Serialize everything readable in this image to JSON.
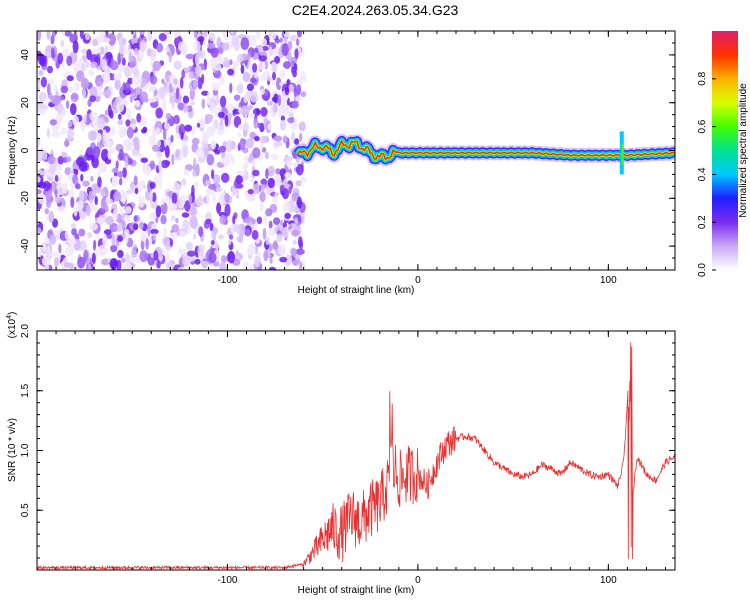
{
  "title": "C2E4.2024.263.05.34.G23",
  "chart_data": [
    {
      "type": "heatmap",
      "xlabel": "Height of straight line (km)",
      "ylabel": "Frequency (Hz)",
      "xlim": [
        -200,
        135
      ],
      "ylim": [
        -50,
        50
      ],
      "xticks": [
        -100,
        0,
        100
      ],
      "xtick_labels": [
        "-100",
        "0",
        "100"
      ],
      "yticks": [
        -40,
        -20,
        0,
        20,
        40
      ],
      "ytick_labels": [
        "-40",
        "-20",
        "0",
        "20",
        "40"
      ],
      "grid": false,
      "noise_region_x": [
        -200,
        -60
      ],
      "signal_ridge": [
        {
          "x": -62,
          "y": -2
        },
        {
          "x": -55,
          "y": 1
        },
        {
          "x": -50,
          "y": 2
        },
        {
          "x": -45,
          "y": -1
        },
        {
          "x": -40,
          "y": 2
        },
        {
          "x": -35,
          "y": 3
        },
        {
          "x": -30,
          "y": 2
        },
        {
          "x": -25,
          "y": -1
        },
        {
          "x": -20,
          "y": -3
        },
        {
          "x": -15,
          "y": -2
        },
        {
          "x": -10,
          "y": -1
        },
        {
          "x": 0,
          "y": -1
        },
        {
          "x": 20,
          "y": -1
        },
        {
          "x": 40,
          "y": -1
        },
        {
          "x": 60,
          "y": -1
        },
        {
          "x": 80,
          "y": -2
        },
        {
          "x": 100,
          "y": -2
        },
        {
          "x": 110,
          "y": -2
        },
        {
          "x": 135,
          "y": -1
        }
      ],
      "colorbar": {
        "label": "Normalized spectral amplitude",
        "ticks": [
          0.0,
          0.2,
          0.4,
          0.6,
          0.8
        ],
        "tick_labels": [
          "0.0",
          "0.2",
          "0.4",
          "0.6",
          "0.8"
        ],
        "range": [
          0,
          1
        ],
        "colors": [
          "#ffffff",
          "#c9a8f5",
          "#7b2cf0",
          "#1f1fff",
          "#00c8ff",
          "#00e090",
          "#40ff00",
          "#d8ff00",
          "#ffb000",
          "#ff3000",
          "#e0206a"
        ]
      }
    },
    {
      "type": "line",
      "xlabel": "Height of straight line (km)",
      "ylabel": "SNR (10 * v/v)",
      "y_multiplier_label": "(x10",
      "y_multiplier_exp": "4",
      "xlim": [
        -200,
        135
      ],
      "ylim": [
        0,
        2.0
      ],
      "xticks": [
        -100,
        0,
        100
      ],
      "xtick_labels": [
        "-100",
        "0",
        "100"
      ],
      "yticks": [
        0.5,
        1.0,
        1.5,
        2.0
      ],
      "ytick_labels": [
        "0.5",
        "1.0",
        "1.5",
        "2.0"
      ],
      "grid": false,
      "color": "#e83030",
      "series": [
        {
          "x": [
            -200,
            -150,
            -100,
            -70,
            -60,
            -55,
            -50,
            -45,
            -40,
            -35,
            -30,
            -25,
            -20,
            -15,
            -12,
            -10,
            -5,
            0,
            5,
            10,
            15,
            20,
            25,
            30,
            35,
            40,
            50,
            55,
            60,
            65,
            70,
            75,
            80,
            85,
            90,
            95,
            100,
            105,
            108,
            110,
            112,
            115,
            120,
            125,
            130,
            135
          ],
          "y": [
            0.02,
            0.02,
            0.02,
            0.02,
            0.05,
            0.15,
            0.25,
            0.35,
            0.3,
            0.45,
            0.4,
            0.5,
            0.55,
            0.75,
            0.85,
            0.75,
            0.8,
            0.8,
            0.7,
            0.9,
            1.05,
            1.1,
            1.12,
            1.1,
            1.0,
            0.9,
            0.8,
            0.78,
            0.8,
            0.88,
            0.85,
            0.8,
            0.9,
            0.85,
            0.8,
            0.78,
            0.8,
            0.7,
            0.9,
            1.4,
            0.5,
            0.95,
            0.8,
            0.75,
            0.9,
            0.95
          ]
        }
      ]
    }
  ]
}
